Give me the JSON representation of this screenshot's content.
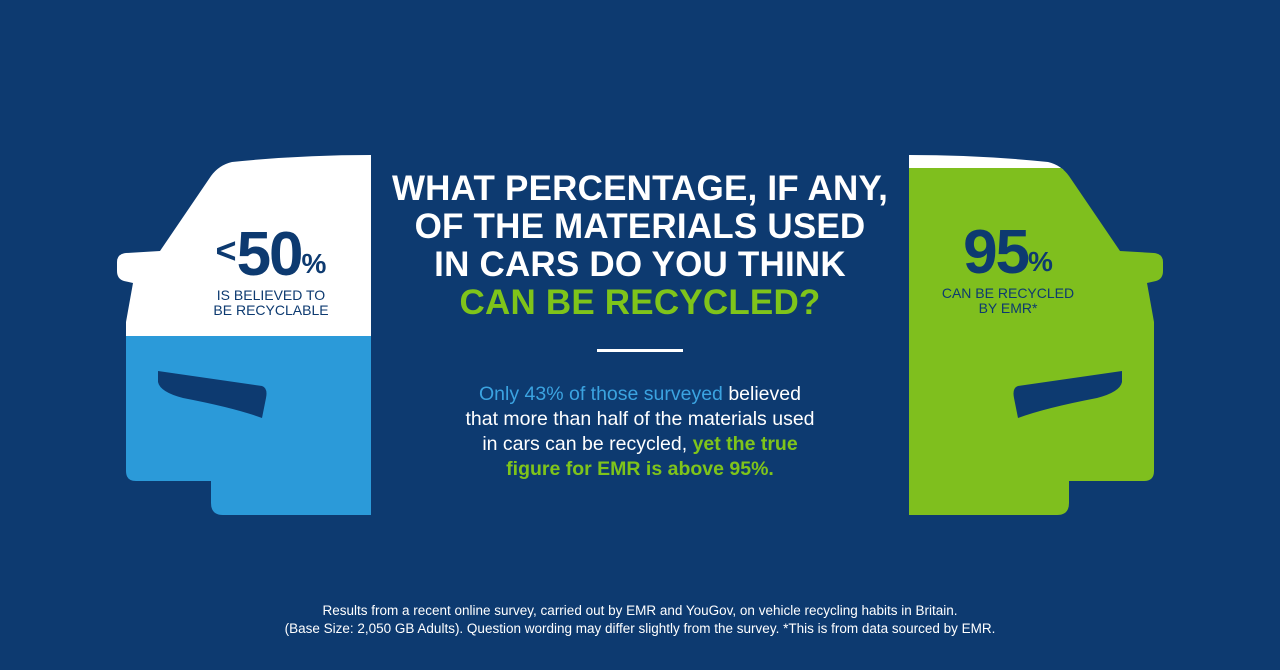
{
  "colors": {
    "background": "#0d3a70",
    "white": "#ffffff",
    "blue": "#2b9ad9",
    "green": "#7fbf1e",
    "navy": "#0d3a70"
  },
  "left_car": {
    "less_than": "<",
    "value": "50",
    "percent": "%",
    "caption_line1": "IS BELIEVED TO",
    "caption_line2": "BE RECYCLABLE"
  },
  "right_car": {
    "value": "95",
    "percent": "%",
    "caption_line1": "CAN BE RECYCLED",
    "caption_line2": "BY EMR*"
  },
  "headline": {
    "line1": "WHAT PERCENTAGE, IF ANY,",
    "line2": "OF THE MATERIALS USED",
    "line3": "IN CARS DO YOU THINK",
    "line4": "CAN BE RECYCLED?"
  },
  "body": {
    "highlight_blue": "Only 43% of those surveyed",
    "text1": " believed",
    "text2": "that more than half of the materials used",
    "text3": "in cars can be recycled, ",
    "highlight_green1": "yet the true",
    "highlight_green2": "figure for EMR is above 95%."
  },
  "footnote": {
    "line1": "Results from a recent online survey, carried out by EMR and YouGov, on vehicle recycling habits in Britain.",
    "line2": "(Base Size: 2,050 GB Adults). Question wording may differ slightly from the survey. *This is from data sourced by EMR."
  }
}
